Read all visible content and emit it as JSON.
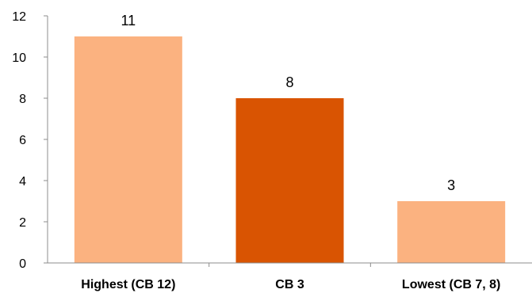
{
  "chart_data": {
    "type": "bar",
    "categories": [
      "Highest (CB 12)",
      "CB 3",
      "Lowest (CB 7, 8)"
    ],
    "values": [
      11,
      8,
      3
    ],
    "data_labels": [
      "11",
      "8",
      "3"
    ],
    "bar_colors": [
      "#FBB280",
      "#D95402",
      "#FBB280"
    ],
    "y_ticks": [
      "0",
      "2",
      "4",
      "6",
      "8",
      "10",
      "12"
    ],
    "ylim": [
      0,
      12
    ],
    "grid": false,
    "legend": "none"
  }
}
